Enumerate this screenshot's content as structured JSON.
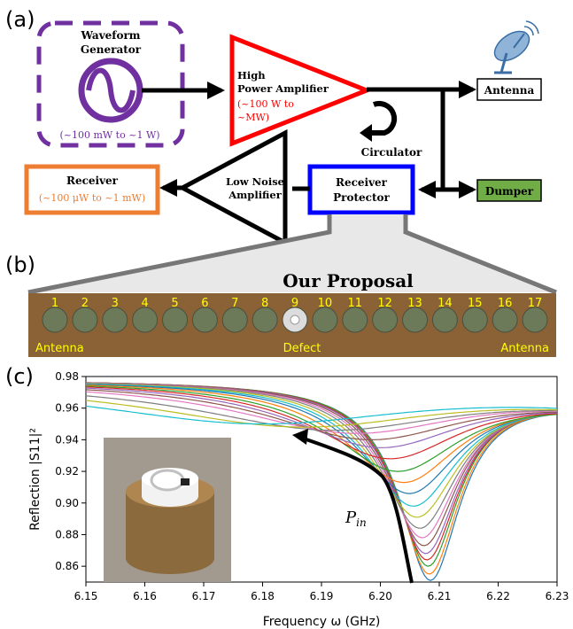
{
  "panel_labels": {
    "a": "(a)",
    "b": "(b)",
    "c": "(c)"
  },
  "blocks": {
    "waveform_generator": {
      "title_line1": "Waveform",
      "title_line2": "Generator",
      "power": "(~100 mW to ~1 W)"
    },
    "high_power_amplifier": {
      "line1": "High",
      "line2": "Power Amplifier",
      "power_line1": "(~100 W to",
      "power_line2": "~MW)"
    },
    "antenna": "Antenna",
    "circulator": "Circulator",
    "dumper": "Dumper",
    "receiver": {
      "title": "Receiver",
      "power": "(~100 μW to ~1 mW)"
    },
    "low_noise_amplifier": {
      "line1": "Low Noise",
      "line2": "Amplifier"
    },
    "receiver_protector": {
      "line1": "Receiver",
      "line2": "Protector"
    }
  },
  "proposal": {
    "title": "Our Proposal",
    "numbers": [
      "1",
      "2",
      "3",
      "4",
      "5",
      "6",
      "7",
      "8",
      "9",
      "10",
      "11",
      "12",
      "13",
      "14",
      "15",
      "16",
      "17"
    ],
    "labels": {
      "left": "Antenna",
      "center": "Defect",
      "right": "Antenna"
    }
  },
  "colors": {
    "purple": "#7030a0",
    "red": "#ff0000",
    "orange": "#ed7d31",
    "blue": "#0000ff",
    "green": "#70ad47",
    "yellow_label": "#ffff00"
  },
  "chart_data": {
    "type": "line",
    "xlabel": "Frequency ω (GHz)",
    "ylabel": "Reflection |S11|²",
    "xlim": [
      6.15,
      6.23
    ],
    "ylim": [
      0.85,
      0.98
    ],
    "xticks": [
      "6.15",
      "6.16",
      "6.17",
      "6.18",
      "6.19",
      "6.20",
      "6.21",
      "6.22",
      "6.23"
    ],
    "yticks": [
      "0.86",
      "0.88",
      "0.90",
      "0.92",
      "0.94",
      "0.96",
      "0.98"
    ],
    "annotation": "P_in",
    "series_colors": [
      "#1f77b4",
      "#ff7f0e",
      "#2ca02c",
      "#d62728",
      "#9467bd",
      "#8c564b",
      "#e377c2",
      "#7f7f7f",
      "#bcbd22",
      "#17becf",
      "#1f77b4",
      "#ff7f0e",
      "#2ca02c",
      "#d62728",
      "#9467bd",
      "#8c564b",
      "#e377c2",
      "#7f7f7f",
      "#bcbd22",
      "#17becf",
      "#1f77b4",
      "#ff7f0e",
      "#2ca02c",
      "#d62728"
    ],
    "series_minima": [
      {
        "f0": 6.2085,
        "min": 0.851,
        "width": 0.0062
      },
      {
        "f0": 6.2083,
        "min": 0.855,
        "width": 0.0063
      },
      {
        "f0": 6.2081,
        "min": 0.86,
        "width": 0.0064
      },
      {
        "f0": 6.2079,
        "min": 0.864,
        "width": 0.0066
      },
      {
        "f0": 6.2077,
        "min": 0.868,
        "width": 0.0068
      },
      {
        "f0": 6.2074,
        "min": 0.873,
        "width": 0.0071
      },
      {
        "f0": 6.2071,
        "min": 0.878,
        "width": 0.0075
      },
      {
        "f0": 6.2067,
        "min": 0.884,
        "width": 0.008
      },
      {
        "f0": 6.2062,
        "min": 0.891,
        "width": 0.0087
      },
      {
        "f0": 6.2056,
        "min": 0.898,
        "width": 0.0095
      },
      {
        "f0": 6.2049,
        "min": 0.906,
        "width": 0.0105
      },
      {
        "f0": 6.204,
        "min": 0.913,
        "width": 0.0118
      },
      {
        "f0": 6.203,
        "min": 0.92,
        "width": 0.0135
      },
      {
        "f0": 6.2017,
        "min": 0.928,
        "width": 0.0155
      },
      {
        "f0": 6.2002,
        "min": 0.935,
        "width": 0.018
      },
      {
        "f0": 6.1985,
        "min": 0.94,
        "width": 0.0208
      },
      {
        "f0": 6.196,
        "min": 0.944,
        "width": 0.024
      },
      {
        "f0": 6.192,
        "min": 0.946,
        "width": 0.028
      },
      {
        "f0": 6.187,
        "min": 0.948,
        "width": 0.032
      },
      {
        "f0": 6.18,
        "min": 0.95,
        "width": 0.036
      }
    ]
  }
}
